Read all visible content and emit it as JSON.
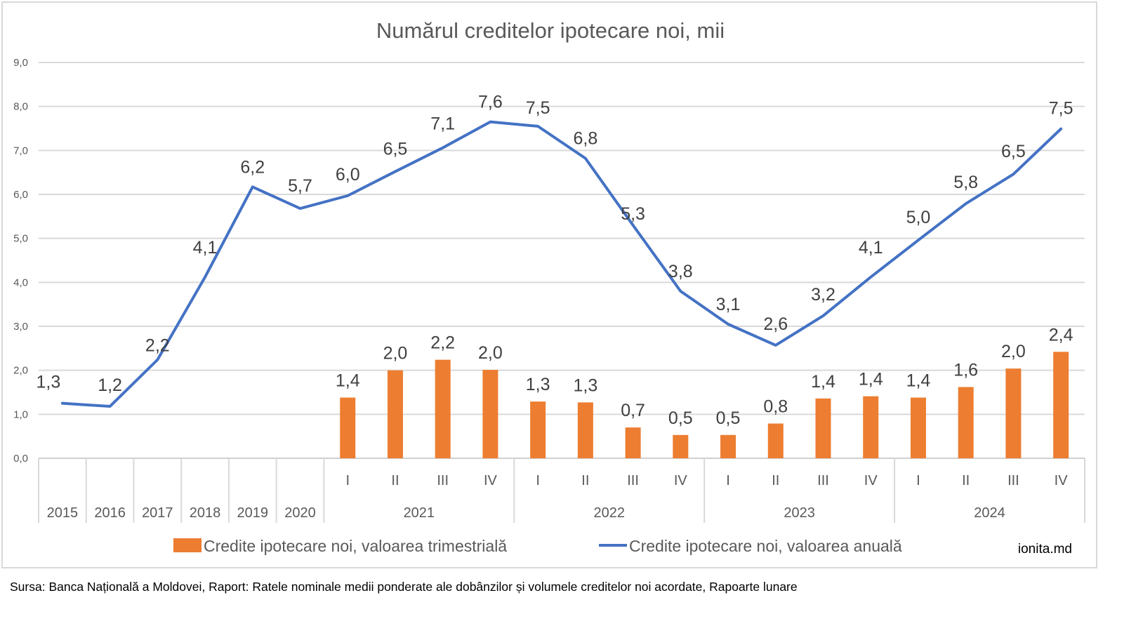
{
  "chart_data": {
    "type": "bar+line",
    "title": "Numărul creditelor ipotecare noi, mii",
    "ylim": [
      0,
      9
    ],
    "yticks": [
      "0,0",
      "1,0",
      "2,0",
      "3,0",
      "4,0",
      "5,0",
      "6,0",
      "7,0",
      "8,0",
      "9,0"
    ],
    "grid": true,
    "categories": [
      {
        "sub": "",
        "group": "2015"
      },
      {
        "sub": "",
        "group": "2016"
      },
      {
        "sub": "",
        "group": "2017"
      },
      {
        "sub": "",
        "group": "2018"
      },
      {
        "sub": "",
        "group": "2019"
      },
      {
        "sub": "",
        "group": "2020"
      },
      {
        "sub": "I",
        "group": "2021"
      },
      {
        "sub": "II",
        "group": "2021"
      },
      {
        "sub": "III",
        "group": "2021"
      },
      {
        "sub": "IV",
        "group": "2021"
      },
      {
        "sub": "I",
        "group": "2022"
      },
      {
        "sub": "II",
        "group": "2022"
      },
      {
        "sub": "III",
        "group": "2022"
      },
      {
        "sub": "IV",
        "group": "2022"
      },
      {
        "sub": "I",
        "group": "2023"
      },
      {
        "sub": "II",
        "group": "2023"
      },
      {
        "sub": "III",
        "group": "2023"
      },
      {
        "sub": "IV",
        "group": "2023"
      },
      {
        "sub": "I",
        "group": "2024"
      },
      {
        "sub": "II",
        "group": "2024"
      },
      {
        "sub": "III",
        "group": "2024"
      },
      {
        "sub": "IV",
        "group": "2024"
      }
    ],
    "groups": [
      "2015",
      "2016",
      "2017",
      "2018",
      "2019",
      "2020",
      "2021",
      "2022",
      "2023",
      "2024"
    ],
    "series": [
      {
        "name": "Credite ipotecare noi, valoarea trimestrială",
        "type": "bar",
        "color": "#ed7d31",
        "values": [
          null,
          null,
          null,
          null,
          null,
          null,
          1.38,
          2.0,
          2.24,
          2.01,
          1.29,
          1.27,
          0.7,
          0.53,
          0.53,
          0.79,
          1.36,
          1.41,
          1.38,
          1.62,
          2.04,
          2.42
        ],
        "labels": [
          "",
          "",
          "",
          "",
          "",
          "",
          "1,4",
          "2,0",
          "2,2",
          "2,0",
          "1,3",
          "1,3",
          "0,7",
          "0,5",
          "0,5",
          "0,8",
          "1,4",
          "1,4",
          "1,4",
          "1,6",
          "2,0",
          "2,4"
        ]
      },
      {
        "name": "Credite ipotecare noi, valoarea anuală",
        "type": "line",
        "color": "#4472c4",
        "values": [
          1.25,
          1.18,
          2.24,
          4.12,
          6.17,
          5.68,
          5.97,
          6.52,
          7.06,
          7.65,
          7.55,
          6.82,
          5.3,
          3.8,
          3.05,
          2.57,
          3.24,
          4.12,
          4.96,
          5.79,
          6.46,
          7.49
        ],
        "labels": [
          "1,3",
          "1,2",
          "2,2",
          "4,1",
          "6,2",
          "5,7",
          "6,0",
          "6,5",
          "7,1",
          "7,6",
          "7,5",
          "6,8",
          "5,3",
          "3,8",
          "3,1",
          "2,6",
          "3,2",
          "4,1",
          "5,0",
          "5,8",
          "6,5",
          "7,5"
        ]
      }
    ],
    "legend_position": "bottom",
    "annotation": "ionita.md"
  },
  "source_note": "Sursa: Banca Națională a Moldovei, Raport: Ratele nominale medii ponderate ale dobânzilor și volumele creditelor noi acordate, Rapoarte lunare"
}
